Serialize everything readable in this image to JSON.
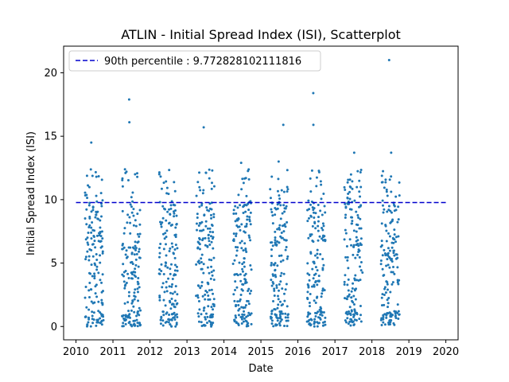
{
  "chart_data": {
    "type": "scatter",
    "title": "ATLIN - Initial Spread Index (ISI), Scatterplot",
    "xlabel": "Date",
    "ylabel": "Initial Spread Index (ISI)",
    "xlim": [
      "2009-09-01",
      "2020-05-01"
    ],
    "ylim": [
      -1.05,
      22.1
    ],
    "x_ticks": [
      "2010",
      "2011",
      "2012",
      "2013",
      "2014",
      "2015",
      "2016",
      "2017",
      "2018",
      "2019",
      "2020"
    ],
    "y_ticks": [
      0,
      5,
      10,
      15,
      20
    ],
    "point_color": "#1f77b4",
    "reference_line": {
      "label": "90th percentile : 9.772828102111816",
      "value": 9.772828102111816,
      "x_range": [
        "2010-01-01",
        "2020-01-01"
      ],
      "color": "#0000cd",
      "style": "dashed"
    },
    "legend_position": "top-left",
    "grid": false,
    "seasons": [
      {
        "year": 2010,
        "start": "2010-04-01",
        "end": "2010-09-30"
      },
      {
        "year": 2011,
        "start": "2011-04-01",
        "end": "2011-09-30"
      },
      {
        "year": 2012,
        "start": "2012-04-01",
        "end": "2012-09-30"
      },
      {
        "year": 2013,
        "start": "2013-04-01",
        "end": "2013-09-30"
      },
      {
        "year": 2014,
        "start": "2014-04-01",
        "end": "2014-09-30"
      },
      {
        "year": 2015,
        "start": "2015-04-01",
        "end": "2015-09-30"
      },
      {
        "year": 2016,
        "start": "2016-04-01",
        "end": "2016-09-30"
      },
      {
        "year": 2017,
        "start": "2017-04-01",
        "end": "2017-09-30"
      },
      {
        "year": 2018,
        "start": "2018-04-01",
        "end": "2018-09-30"
      }
    ],
    "notable_points": [
      {
        "date": "2010-06-01",
        "value": 14.5
      },
      {
        "date": "2011-06-10",
        "value": 17.9
      },
      {
        "date": "2011-06-12",
        "value": 16.1
      },
      {
        "date": "2013-06-15",
        "value": 15.7
      },
      {
        "date": "2014-06-20",
        "value": 12.9
      },
      {
        "date": "2015-06-25",
        "value": 13.0
      },
      {
        "date": "2015-08-10",
        "value": 15.9
      },
      {
        "date": "2016-06-01",
        "value": 18.4
      },
      {
        "date": "2016-06-02",
        "value": 15.9
      },
      {
        "date": "2017-07-10",
        "value": 13.7
      },
      {
        "date": "2018-06-20",
        "value": 21.0
      },
      {
        "date": "2018-07-10",
        "value": 13.7
      }
    ]
  }
}
